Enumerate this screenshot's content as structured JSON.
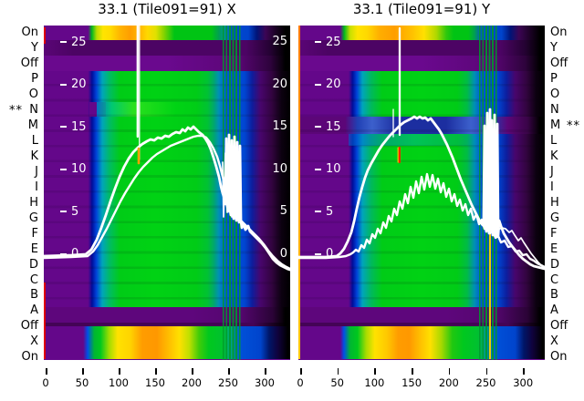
{
  "titles": {
    "left": "33.1 (Tile091=91) X",
    "right": "33.1 (Tile091=91) Y"
  },
  "row_labels": [
    "On",
    "Y",
    "Off",
    "P",
    "O",
    "N",
    "M",
    "L",
    "K",
    "J",
    "I",
    "H",
    "G",
    "F",
    "E",
    "D",
    "C",
    "B",
    "A",
    "Off",
    "X",
    "On"
  ],
  "markers": {
    "left": "**",
    "left_row": "N",
    "right": "**",
    "right_row": "M"
  },
  "y_axis": {
    "ticks": [
      "25",
      "20",
      "15",
      "10",
      "5",
      "0"
    ]
  },
  "x_axis": {
    "ticks": [
      "0",
      "50",
      "100",
      "150",
      "200",
      "250",
      "300"
    ]
  },
  "colors": {
    "background": "#ffffff",
    "text": "#000000",
    "tick_text_inside": "#ffffff",
    "heatmap_low_purple": "#64078a",
    "heatmap_mid_green": "#00cc16",
    "heatmap_high_orange": "#ff9800",
    "heatmap_blue": "#0046d2",
    "heatmap_dark_edge": "#000000",
    "profile_curve": "#ffffff",
    "left_edge_line": "#e00000",
    "right_edge_line": "#ff8800",
    "marker_left": "#ffa000",
    "marker_right_red": "#ff2000",
    "marker_right_yellow": "#ffd800"
  },
  "curves": {
    "left": {
      "upper": "0,253 30,252 46,251 52,246 58,235 63,222 68,208 73,193 78,179 83,166 88,155 93,146 98,139 103,134 108,130 113,127 117,125 121,126 125,123 129,124 133,121 137,122 141,119 145,117 149,118 152,114 155,116 158,112 161,114 164,111 167,114 170,117 174,120 177,124 180,129 183,136 186,145 189,155 192,166 194,176 196,184 198,190 199,196 200,124 201,198 202,204 203,120 204,202 205,208 206,126 207,204 208,212 209,122 210,206 211,214 212,128 213,210 214,216 215,132 216,214 217,222 219,218 221,224 224,220 226,226 229,229 232,232 235,235 239,239 243,244 247,250 251,256 255,260 259,263 263,265 267,267 270,268",
      "lower": "0,255 30,254 48,253 54,248 59,241 64,232 69,223 74,213 79,203 84,193 89,184 94,176 99,168 104,161 109,155 114,150 119,145 124,141 129,138 134,135 139,132 144,130 149,128 154,126 159,124 164,122 169,121 174,121 178,123 182,128 186,135 190,144 193,154 196,166 199,178 202,188 205,196 208,203 211,208 215,213 219,217 223,221 227,225 231,229 236,234 241,240 246,247 251,253 256,258 261,262 266,265 270,267",
      "extra": "196,150 197,210 199,140 201,205 204,145 206,210 209,138 211,208 213,148 215,210",
      "spike_a": "102.8,0 102.8,122",
      "spike_b": "104.8,0 104.8,147",
      "marker": "104,135 104,151"
    },
    "right": {
      "upper": "0,254 30,254 42,253 46,250 50,245 54,237 58,227 61,215 64,201 67,188 70,177 73,167 76,159 80,151 84,144 88,137 92,131 96,126 100,121 104,117 108,113 112,109 116,106 120,104 124,102 127,100 130,102 133,100 136,102 139,101 142,104 145,102 148,106 151,110 154,114 157,119 160,125 163,131 166,138 169,145 172,153 175,161 178,169 181,176 184,183 187,190 190,197 193,203 196,209 199,215 202,219 203,216 204,110 205,220 206,226 207,96 208,220 209,228 210,92 211,224 212,104 213,230 214,226 215,98 216,228 217,232 218,108 219,230 220,214 222,220 225,228 228,233 231,238 234,242 238,247 242,252 246,256 250,259 254,262 258,264 262,265 266,266 270,267",
      "osc": "0,255 30,255 45,254 52,253 57,251 60,249 63,246 66,248 69,241 72,244 75,235 78,239 81,229 84,233 87,223 90,228 93,216 96,222 99,209 102,215 105,201 108,208 111,193 114,201 117,185 120,195 123,177 126,189 129,171 132,184 135,166 138,180 141,163 144,177 147,164 150,179 153,168 156,183 159,173 162,188 165,179 168,193 171,185 174,198 177,191 180,203 183,196 186,208 189,201 192,213 195,207 198,218 201,213 204,223 207,219 210,228 213,225 216,233 219,231 222,238 226,236 230,243 234,242 238,248 242,247 246,252 250,251 254,256 258,258 262,261 266,263 270,265",
      "bump": "219,224 223,222 227,223 231,227 234,225 237,230 241,236 244,233 247,238 251,244 255,250 259,255 263,260 267,264 270,266",
      "extra": "204,140 205,210 207,120 209,205 211,130 213,215 215,118 217,210",
      "spike_a": "111,3 111,120",
      "spike_b": "104,92 104,122",
      "marker_red": "110.8,134 110.8,150",
      "marker_yellow": "109.2,134 109.2,150"
    }
  },
  "chart_data": [
    {
      "type": "heatmap",
      "title": "33.1 (Tile091=91) X",
      "x_ticks": [
        0,
        50,
        100,
        150,
        200,
        250,
        300
      ],
      "x_range": [
        0,
        335
      ],
      "value_ticks": [
        25,
        20,
        15,
        10,
        5,
        0
      ],
      "row_categories_top_to_bottom": [
        "On",
        "Y",
        "Off",
        "P",
        "O",
        "N",
        "M",
        "L",
        "K",
        "J",
        "I",
        "H",
        "G",
        "F",
        "E",
        "D",
        "C",
        "B",
        "A",
        "Off",
        "X",
        "On"
      ],
      "flagged_row": "N",
      "colormap": "purple(low) -> blue -> cyan -> green -> yellow -> orange(high), black at right edge",
      "grid": false,
      "legend": false,
      "overlay_series": [
        {
          "name": "profile-upper",
          "color": "#ffffff",
          "x": [
            0,
            60,
            80,
            100,
            120,
            140,
            160,
            180,
            200,
            215,
            230,
            240,
            255,
            270,
            285,
            300,
            320,
            330
          ],
          "y": [
            0,
            1,
            5.5,
            9.5,
            12,
            13.5,
            14.5,
            15,
            14.7,
            13.8,
            10,
            7,
            7.5,
            4.5,
            3,
            1.5,
            0,
            -0.5
          ],
          "note": "noisy burst with spikes up to ~14.5 between x=240-265"
        },
        {
          "name": "profile-lower",
          "color": "#ffffff",
          "x": [
            0,
            60,
            80,
            100,
            120,
            140,
            160,
            180,
            200,
            215,
            230,
            240,
            255,
            270,
            285,
            300,
            320,
            330
          ],
          "y": [
            0,
            0.5,
            3.5,
            7.5,
            10,
            11.8,
            13.2,
            14.3,
            14.9,
            14,
            10,
            7,
            7.5,
            4.5,
            3,
            1.5,
            0,
            -0.5
          ]
        }
      ],
      "annotations": [
        {
          "type": "vertical-spike",
          "color": "#ffffff",
          "x": 127,
          "from_value": 27,
          "to_value": 14
        },
        {
          "type": "marker-tick",
          "color": "#ffa500",
          "x": 128,
          "value_range": [
            10.5,
            12.5
          ]
        }
      ]
    },
    {
      "type": "heatmap",
      "title": "33.1 (Tile091=91) Y",
      "x_ticks": [
        0,
        50,
        100,
        150,
        200,
        250,
        300
      ],
      "x_range": [
        0,
        330
      ],
      "value_ticks": [
        25,
        20,
        15,
        10,
        5,
        0
      ],
      "row_categories_top_to_bottom": [
        "On",
        "Y",
        "Off",
        "P",
        "O",
        "N",
        "M",
        "L",
        "K",
        "J",
        "I",
        "H",
        "G",
        "F",
        "E",
        "D",
        "C",
        "B",
        "A",
        "Off",
        "X",
        "On"
      ],
      "flagged_row": "M",
      "colormap": "purple(low) -> blue -> cyan -> green -> yellow -> orange(high), black at right edge; dark blue horizontal band at rows M-L",
      "grid": false,
      "legend": false,
      "overlay_series": [
        {
          "name": "profile-upper",
          "color": "#ffffff",
          "x": [
            0,
            55,
            70,
            90,
            110,
            130,
            150,
            165,
            180,
            195,
            210,
            225,
            240,
            255,
            270,
            285,
            300,
            320,
            330
          ],
          "y": [
            0,
            0.5,
            3,
            8,
            11.5,
            13.9,
            15.5,
            16,
            15.3,
            13.5,
            11,
            8.5,
            6.5,
            6.5,
            3.8,
            2.3,
            1.2,
            0.3,
            -0.2
          ],
          "note": "noisy burst with spikes up to ~18 between x=240-265"
        },
        {
          "name": "profile-oscillating",
          "color": "#ffffff",
          "x": [
            0,
            60,
            80,
            100,
            115,
            130,
            145,
            160,
            175,
            190,
            205,
            220,
            240,
            260,
            280,
            300,
            320,
            330
          ],
          "y": [
            0,
            0.4,
            1.8,
            4.2,
            6,
            7.8,
            9.2,
            9.8,
            9,
            7.8,
            6.6,
            5.6,
            4.2,
            3,
            1.9,
            1,
            0.3,
            0
          ],
          "note": "zig-zag oscillation of ~±0.8 superimposed"
        }
      ],
      "annotations": [
        {
          "type": "vertical-spike",
          "color": "#ffffff",
          "x": 134,
          "from_value": 26.5,
          "to_value": 14
        },
        {
          "type": "vertical-spike-thin",
          "color": "#ffffff",
          "x": 125,
          "from_value": 17,
          "to_value": 12.5
        },
        {
          "type": "marker-tick",
          "color": "#ff2000 with #ffd800 edge",
          "x": 134,
          "value_range": [
            10.8,
            12.5
          ]
        }
      ]
    }
  ]
}
